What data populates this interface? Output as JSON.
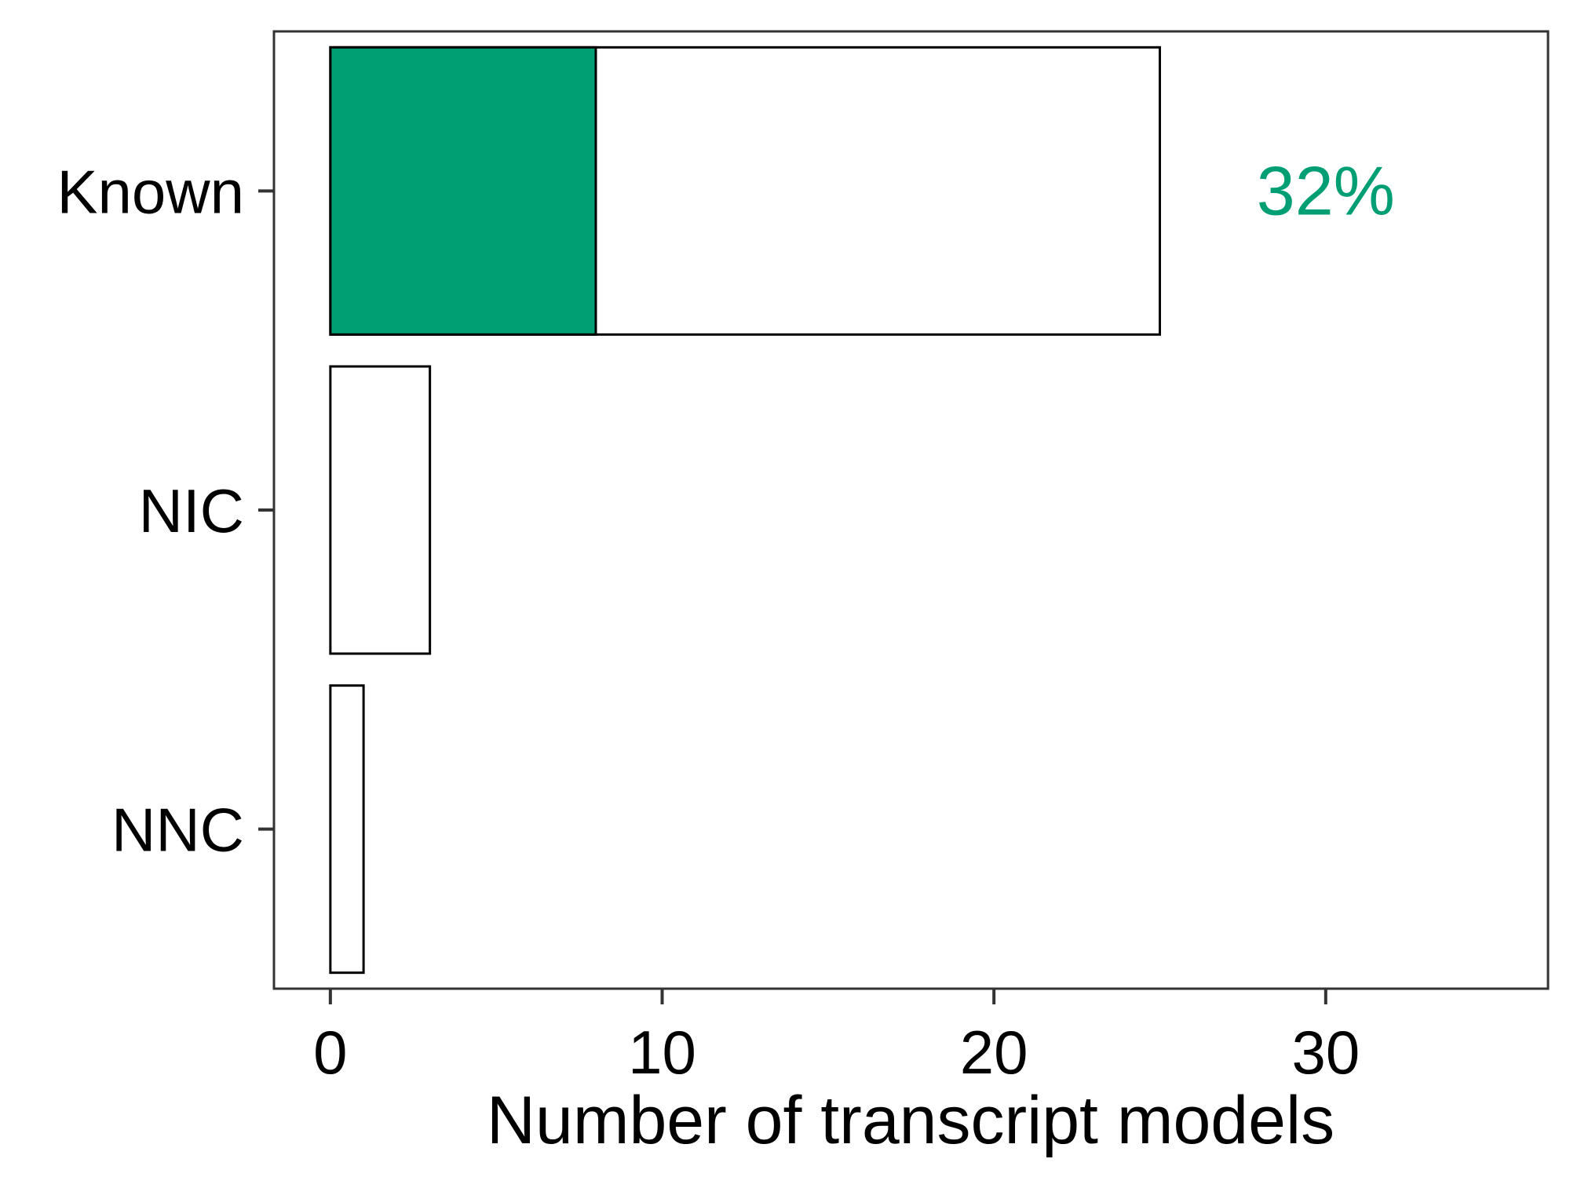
{
  "chart_data": {
    "type": "bar",
    "orientation": "horizontal",
    "categories": [
      "Known",
      "NIC",
      "NNC"
    ],
    "series": [
      {
        "values": [
          25,
          3,
          1
        ],
        "color": "#ffffff"
      },
      {
        "values": [
          8,
          0,
          0
        ],
        "color": "#009E73"
      }
    ],
    "annotations": [
      {
        "category": "Known",
        "text": "32%",
        "x": 30,
        "color": "#009E73"
      }
    ],
    "xlabel": "Number of transcript models",
    "ylabel": "",
    "xlim": [
      -1.7,
      36.7
    ],
    "xticks": [
      {
        "value": 0,
        "label": "0"
      },
      {
        "value": 10,
        "label": "10"
      },
      {
        "value": 20,
        "label": "20"
      },
      {
        "value": 30,
        "label": "30"
      }
    ],
    "grid": false,
    "legend": "none"
  }
}
